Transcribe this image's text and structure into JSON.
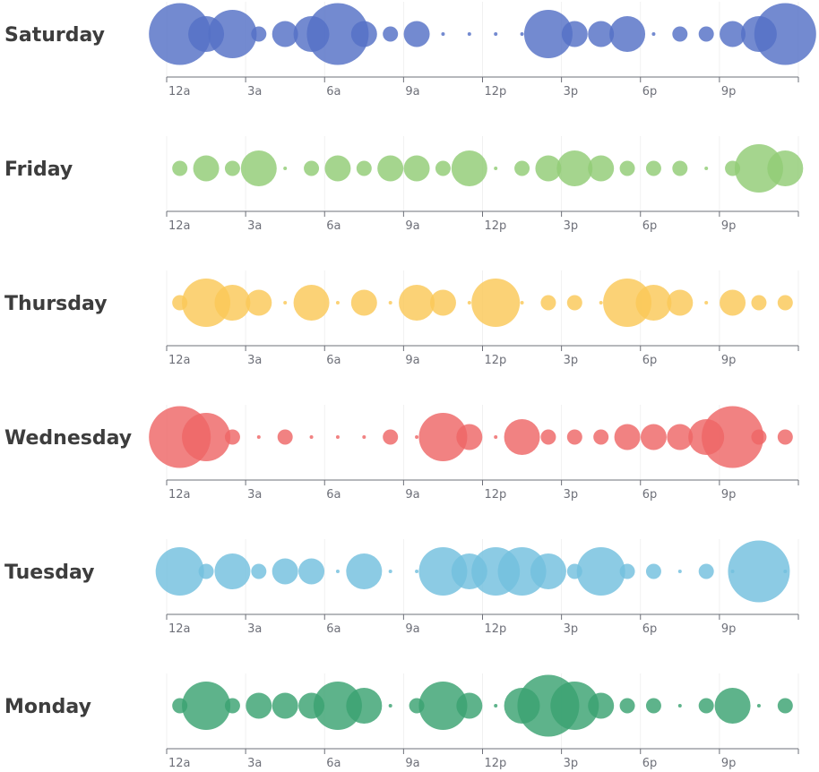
{
  "chart_data": {
    "type": "scatter",
    "encoding": "bubble",
    "x_categories": [
      "12a",
      "1a",
      "2a",
      "3a",
      "4a",
      "5a",
      "6a",
      "7a",
      "8a",
      "9a",
      "10a",
      "11a",
      "12p",
      "1p",
      "2p",
      "3p",
      "4p",
      "5p",
      "6p",
      "7p",
      "8p",
      "9p",
      "10p",
      "11p"
    ],
    "x_tick_labels": [
      "12a",
      "3a",
      "6a",
      "9a",
      "12p",
      "3p",
      "6p",
      "9p"
    ],
    "grid": false,
    "legend": "none",
    "series": [
      {
        "name": "Saturday",
        "color": "#5470c6",
        "values": [
          5,
          3,
          4,
          1,
          2,
          3,
          5,
          2,
          1,
          2,
          0,
          0,
          0,
          0,
          4,
          2,
          2,
          3,
          0,
          1,
          1,
          2,
          3,
          5
        ]
      },
      {
        "name": "Friday",
        "color": "#91cc75",
        "values": [
          1,
          2,
          1,
          3,
          0,
          1,
          2,
          1,
          2,
          2,
          1,
          3,
          0,
          1,
          2,
          3,
          2,
          1,
          1,
          1,
          0,
          1,
          4,
          3
        ]
      },
      {
        "name": "Thursday",
        "color": "#fac858",
        "values": [
          1,
          4,
          3,
          2,
          0,
          3,
          0,
          2,
          0,
          3,
          2,
          0,
          4,
          0,
          1,
          1,
          0,
          4,
          3,
          2,
          0,
          2,
          1,
          1
        ]
      },
      {
        "name": "Wednesday",
        "color": "#ee6666",
        "values": [
          5,
          4,
          1,
          0,
          1,
          0,
          0,
          0,
          1,
          0,
          4,
          2,
          0,
          3,
          1,
          1,
          1,
          2,
          2,
          2,
          3,
          5,
          1,
          1
        ]
      },
      {
        "name": "Tuesday",
        "color": "#73c0de",
        "values": [
          4,
          1,
          3,
          1,
          2,
          2,
          0,
          3,
          0,
          0,
          4,
          3,
          4,
          4,
          3,
          1,
          4,
          1,
          1,
          0,
          1,
          0,
          5,
          0
        ]
      },
      {
        "name": "Monday",
        "color": "#3ba272",
        "values": [
          1,
          4,
          1,
          2,
          2,
          2,
          4,
          3,
          0,
          1,
          4,
          2,
          0,
          3,
          5,
          4,
          2,
          1,
          1,
          0,
          1,
          3,
          0,
          1
        ]
      }
    ]
  }
}
